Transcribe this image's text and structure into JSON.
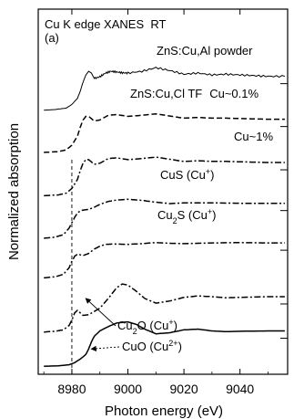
{
  "chart_data": {
    "type": "line",
    "title": "Cu K edge XANES  RT",
    "panel_label": "(a)",
    "xlabel": "Photon energy (eV)",
    "ylabel": "Normalized absorption",
    "xlim": [
      8968,
      9057
    ],
    "xticks": [
      8980,
      9000,
      9020,
      9040
    ],
    "xtick_labels": [
      "8980",
      "9000",
      "9020",
      "9040"
    ],
    "y_ticks_shown": false,
    "grid": false,
    "legend": "labels placed next to curves",
    "reference_line": {
      "x": 8980,
      "style": "dashed"
    },
    "series": [
      {
        "name": "ZnS:Cu,Al powder",
        "name_parts": [
          "ZnS:Cu,Al powder"
        ],
        "offset": 7.1,
        "style": "noisy",
        "x": [
          8970,
          8974,
          8978,
          8980,
          8982,
          8983,
          8984,
          8985,
          8986,
          8987,
          8988,
          8990,
          8992,
          8994,
          8996,
          8998,
          9000,
          9005,
          9010,
          9015,
          9020,
          9025,
          9030,
          9035,
          9040,
          9045,
          9050,
          9056
        ],
        "y": [
          0.02,
          0.04,
          0.08,
          0.18,
          0.35,
          0.55,
          0.8,
          1.0,
          1.1,
          1.05,
          0.9,
          0.95,
          1.05,
          1.1,
          1.08,
          1.06,
          1.05,
          1.1,
          1.2,
          1.12,
          1.02,
          1.05,
          1.0,
          1.02,
          1.0,
          0.98,
          0.96,
          0.96
        ]
      },
      {
        "name": "ZnS:Cu,Cl TF  Cu~0.1%",
        "name_parts": [
          "ZnS:Cu,Cl TF",
          "Cu~0.1%"
        ],
        "offset": 5.9,
        "style": "dashed",
        "x": [
          8970,
          8975,
          8978,
          8980,
          8982,
          8983,
          8984,
          8985,
          8986,
          8988,
          8990,
          8993,
          8996,
          9000,
          9005,
          9010,
          9015,
          9020,
          9025,
          9030,
          9035,
          9040,
          9045,
          9050,
          9056
        ],
        "y": [
          0.05,
          0.07,
          0.12,
          0.25,
          0.5,
          0.75,
          0.95,
          1.05,
          1.05,
          0.92,
          0.95,
          1.08,
          1.1,
          1.05,
          1.08,
          1.12,
          1.06,
          1.0,
          1.02,
          1.0,
          1.0,
          0.99,
          0.98,
          0.97,
          0.97
        ]
      },
      {
        "name": "Cu~1%",
        "name_parts": [
          "Cu~1%"
        ],
        "offset": 4.7,
        "style": "dashdot",
        "x": [
          8970,
          8975,
          8978,
          8980,
          8982,
          8983,
          8984,
          8985,
          8986,
          8988,
          8990,
          8993,
          8996,
          9000,
          9005,
          9010,
          9015,
          9020,
          9025,
          9030,
          9035,
          9040,
          9045,
          9050,
          9056
        ],
        "y": [
          0.05,
          0.07,
          0.12,
          0.25,
          0.5,
          0.75,
          0.95,
          1.05,
          1.05,
          0.92,
          0.95,
          1.08,
          1.1,
          1.05,
          1.08,
          1.12,
          1.06,
          1.0,
          1.02,
          1.0,
          1.0,
          0.99,
          0.98,
          0.97,
          0.97
        ]
      },
      {
        "name": "CuS (Cu+)",
        "name_parts": [
          "CuS (Cu",
          "+",
          ")"
        ],
        "offset": 3.55,
        "style": "dashdot",
        "x": [
          8970,
          8974,
          8977,
          8979,
          8980,
          8981,
          8982,
          8983,
          8984,
          8986,
          8988,
          8990,
          8993,
          8996,
          9000,
          9005,
          9010,
          9015,
          9020,
          9030,
          9040,
          9050,
          9056
        ],
        "y": [
          0.02,
          0.05,
          0.12,
          0.3,
          0.45,
          0.6,
          0.72,
          0.78,
          0.8,
          0.82,
          0.88,
          0.96,
          1.04,
          1.08,
          1.1,
          1.07,
          1.02,
          0.98,
          1.0,
          1.0,
          0.99,
          0.99,
          0.99
        ]
      },
      {
        "name": "Cu2S (Cu+)",
        "name_parts": [
          "Cu",
          "2",
          "S (Cu",
          "+",
          ")"
        ],
        "offset": 2.45,
        "style": "dashdot",
        "x": [
          8970,
          8974,
          8977,
          8979,
          8980,
          8981,
          8982,
          8983,
          8984,
          8986,
          8988,
          8990,
          8992,
          8995,
          9000,
          9005,
          9010,
          9015,
          9020,
          9030,
          9040,
          9050,
          9056
        ],
        "y": [
          0.02,
          0.05,
          0.12,
          0.3,
          0.48,
          0.62,
          0.68,
          0.66,
          0.64,
          0.7,
          0.82,
          0.9,
          0.95,
          0.96,
          0.95,
          0.97,
          1.0,
          0.98,
          0.97,
          0.99,
          1.0,
          0.99,
          0.99
        ]
      },
      {
        "name": "Cu2O (Cu+)",
        "name_parts": [
          "Cu",
          "2",
          "O (Cu",
          "+",
          ")"
        ],
        "offset": 0.95,
        "style": "dashdot",
        "x": [
          8970,
          8974,
          8977,
          8979,
          8980,
          8981,
          8982,
          8983,
          8984,
          8986,
          8990,
          8993,
          8996,
          8998,
          9000,
          9003,
          9006,
          9010,
          9015,
          9020,
          9025,
          9030,
          9035,
          9040,
          9050,
          9056
        ],
        "y": [
          0.02,
          0.04,
          0.08,
          0.2,
          0.35,
          0.55,
          0.62,
          0.55,
          0.48,
          0.5,
          0.68,
          0.95,
          1.25,
          1.35,
          1.32,
          1.15,
          0.95,
          0.82,
          0.88,
          0.98,
          1.02,
          1.0,
          0.97,
          0.98,
          1.0,
          1.0
        ]
      },
      {
        "name": "CuO (Cu2+)",
        "name_parts": [
          "CuO (Cu",
          "2+",
          ")"
        ],
        "offset": 0.0,
        "style": "solid",
        "x": [
          8970,
          8975,
          8979,
          8981,
          8983,
          8984,
          8985,
          8986,
          8987,
          8988,
          8990,
          8993,
          8996,
          9000,
          9003,
          9006,
          9010,
          9015,
          9020,
          9025,
          9030,
          9035,
          9040,
          9050,
          9056
        ],
        "y": [
          0.02,
          0.03,
          0.06,
          0.12,
          0.22,
          0.28,
          0.35,
          0.5,
          0.7,
          0.85,
          1.0,
          1.12,
          1.22,
          1.25,
          1.18,
          1.05,
          0.92,
          0.95,
          1.03,
          1.05,
          1.0,
          0.98,
          0.99,
          1.0,
          1.0
        ]
      }
    ],
    "annotations": [
      {
        "target": "Cu2O (Cu+)",
        "x": 8984,
        "y": 0.95
      },
      {
        "target": "CuO (Cu2+)",
        "x": 8986,
        "y": 0.5
      }
    ]
  }
}
